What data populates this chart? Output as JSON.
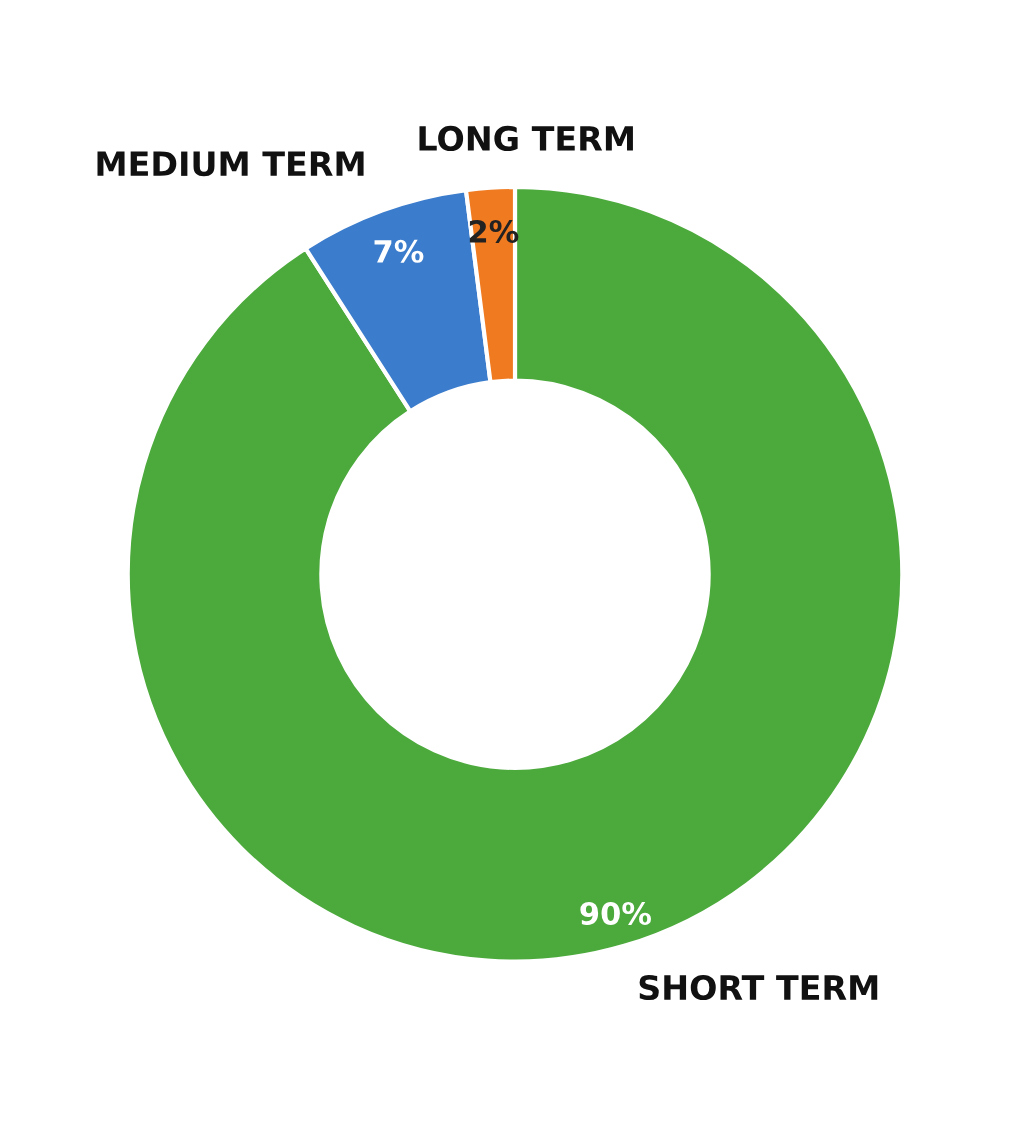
{
  "chart_data": {
    "type": "donut",
    "categories": [
      "SHORT TERM",
      "MEDIUM TERM",
      "LONG TERM"
    ],
    "values": [
      90,
      7,
      2
    ],
    "colors": [
      "#4caa3c",
      "#3b7ccc",
      "#f07a20"
    ],
    "value_labels": [
      "90%",
      "7%",
      "2%"
    ],
    "legend": false
  }
}
